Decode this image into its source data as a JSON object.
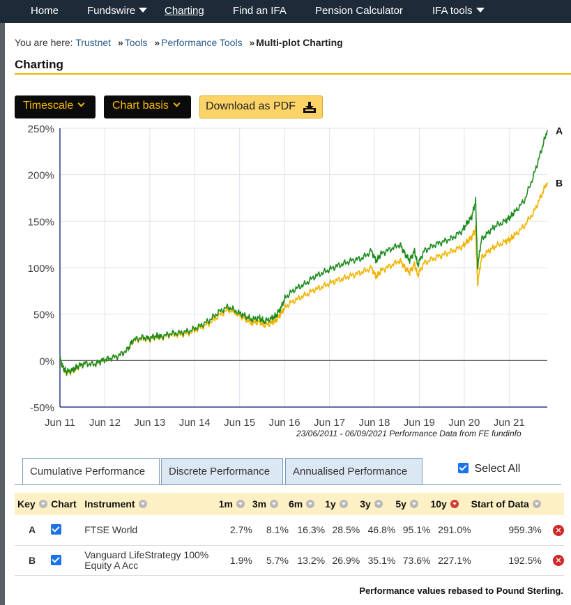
{
  "nav": {
    "items": [
      {
        "label": "Home",
        "dropdown": false,
        "active": false
      },
      {
        "label": "Fundswire",
        "dropdown": true,
        "active": false
      },
      {
        "label": "Charting",
        "dropdown": false,
        "active": true
      },
      {
        "label": "Find an IFA",
        "dropdown": false,
        "active": false
      },
      {
        "label": "Pension Calculator",
        "dropdown": false,
        "active": false
      },
      {
        "label": "IFA tools",
        "dropdown": true,
        "active": false
      }
    ]
  },
  "breadcrumb": {
    "prefix": "You are here:",
    "links": [
      "Trustnet",
      "Tools",
      "Performance Tools"
    ],
    "current": "Multi-plot Charting"
  },
  "page_title": "Charting",
  "toolbar": {
    "timescale_label": "Timescale",
    "chart_basis_label": "Chart basis",
    "download_label": "Download as PDF"
  },
  "chart_data": {
    "type": "line",
    "y_tick_labels": [
      "250%",
      "200%",
      "150%",
      "100%",
      "50%",
      "0%",
      "-50%"
    ],
    "y_ticks": [
      250,
      200,
      150,
      100,
      50,
      0,
      -50
    ],
    "ylim": [
      -50,
      250
    ],
    "x_tick_labels": [
      "Jun 11",
      "Jun 12",
      "Jun 13",
      "Jun 14",
      "Jun 15",
      "Jun 16",
      "Jun 17",
      "Jun 18",
      "Jun 19",
      "Jun 20",
      "Jun 21"
    ],
    "xlim": [
      2011.48,
      2021.68
    ],
    "grid": true,
    "caption": "23/06/2011 - 06/09/2021 Performance Data from FE fundinfo",
    "series": [
      {
        "name": "A",
        "color": "#1d8c1d",
        "x": [
          2011.48,
          2011.55,
          2011.62,
          2011.75,
          2011.85,
          2012.0,
          2012.2,
          2012.35,
          2012.5,
          2012.7,
          2012.9,
          2013.0,
          2013.2,
          2013.35,
          2013.5,
          2013.6,
          2013.8,
          2014.0,
          2014.2,
          2014.4,
          2014.6,
          2014.8,
          2015.0,
          2015.2,
          2015.35,
          2015.5,
          2015.65,
          2015.75,
          2015.9,
          2016.0,
          2016.1,
          2016.2,
          2016.4,
          2016.6,
          2016.8,
          2017.0,
          2017.2,
          2017.4,
          2017.6,
          2017.8,
          2018.0,
          2018.1,
          2018.2,
          2018.4,
          2018.6,
          2018.7,
          2018.8,
          2018.9,
          2018.97,
          2019.1,
          2019.3,
          2019.5,
          2019.7,
          2019.9,
          2020.0,
          2020.1,
          2020.18,
          2020.22,
          2020.3,
          2020.45,
          2020.6,
          2020.8,
          2020.9,
          2021.0,
          2021.2,
          2021.4,
          2021.55,
          2021.68
        ],
        "y": [
          2,
          -8,
          -12,
          -10,
          -6,
          -3,
          -4,
          0,
          2,
          5,
          12,
          22,
          25,
          24,
          27,
          26,
          29,
          30,
          32,
          37,
          43,
          52,
          58,
          52,
          48,
          44,
          46,
          42,
          45,
          48,
          56,
          68,
          77,
          82,
          90,
          95,
          100,
          104,
          108,
          110,
          118,
          107,
          115,
          120,
          125,
          115,
          108,
          118,
          103,
          118,
          124,
          128,
          132,
          140,
          148,
          155,
          172,
          100,
          130,
          138,
          145,
          150,
          154,
          160,
          172,
          200,
          225,
          248
        ]
      },
      {
        "name": "B",
        "color": "#f0b400",
        "x": [
          2011.48,
          2011.55,
          2011.62,
          2011.75,
          2011.85,
          2012.0,
          2012.2,
          2012.35,
          2012.5,
          2012.7,
          2012.9,
          2013.0,
          2013.2,
          2013.35,
          2013.5,
          2013.6,
          2013.8,
          2014.0,
          2014.2,
          2014.4,
          2014.6,
          2014.8,
          2015.0,
          2015.2,
          2015.35,
          2015.5,
          2015.65,
          2015.75,
          2015.9,
          2016.0,
          2016.1,
          2016.2,
          2016.4,
          2016.6,
          2016.8,
          2017.0,
          2017.2,
          2017.4,
          2017.6,
          2017.8,
          2018.0,
          2018.1,
          2018.2,
          2018.4,
          2018.6,
          2018.7,
          2018.8,
          2018.9,
          2018.97,
          2019.1,
          2019.3,
          2019.5,
          2019.7,
          2019.9,
          2020.0,
          2020.1,
          2020.18,
          2020.22,
          2020.3,
          2020.45,
          2020.6,
          2020.8,
          2020.9,
          2021.0,
          2021.2,
          2021.4,
          2021.55,
          2021.68
        ],
        "y": [
          2,
          -9,
          -13,
          -11,
          -7,
          -3,
          -4,
          0,
          2,
          5,
          12,
          21,
          24,
          23,
          26,
          25,
          28,
          28,
          30,
          35,
          40,
          48,
          55,
          50,
          45,
          40,
          42,
          38,
          40,
          43,
          50,
          58,
          65,
          70,
          76,
          80,
          85,
          88,
          92,
          95,
          100,
          90,
          97,
          102,
          108,
          100,
          95,
          104,
          92,
          105,
          110,
          114,
          118,
          123,
          128,
          133,
          142,
          82,
          110,
          118,
          123,
          128,
          130,
          135,
          145,
          160,
          177,
          192
        ]
      }
    ]
  },
  "tabs": [
    {
      "label": "Cumulative Performance",
      "active": true
    },
    {
      "label": "Discrete Performance",
      "active": false
    },
    {
      "label": "Annualised Performance",
      "active": false
    }
  ],
  "select_all": {
    "label": "Select All",
    "checked": true
  },
  "table": {
    "headers": [
      "Key",
      "Chart",
      "Instrument",
      "1m",
      "3m",
      "6m",
      "1y",
      "3y",
      "5y",
      "10y",
      "Start of Data"
    ],
    "active_sort": "10y",
    "rows": [
      {
        "key": "A",
        "checked": true,
        "instrument_line1": "FTSE World",
        "instrument_line2": "",
        "m1": "2.7%",
        "m3": "8.1%",
        "m6": "16.3%",
        "y1": "28.5%",
        "y3": "46.8%",
        "y5": "95.1%",
        "y10": "291.0%",
        "start": "959.3%",
        "remove": "✕"
      },
      {
        "key": "B",
        "checked": true,
        "instrument_line1": "Vanguard LifeStrategy 100%",
        "instrument_line2": "Equity A Acc",
        "m1": "1.9%",
        "m3": "5.7%",
        "m6": "13.2%",
        "y1": "26.9%",
        "y3": "35.1%",
        "y5": "73.6%",
        "y10": "227.1%",
        "start": "192.5%",
        "remove": "✕"
      }
    ]
  },
  "footnote": "Performance values rebased to Pound Sterling."
}
